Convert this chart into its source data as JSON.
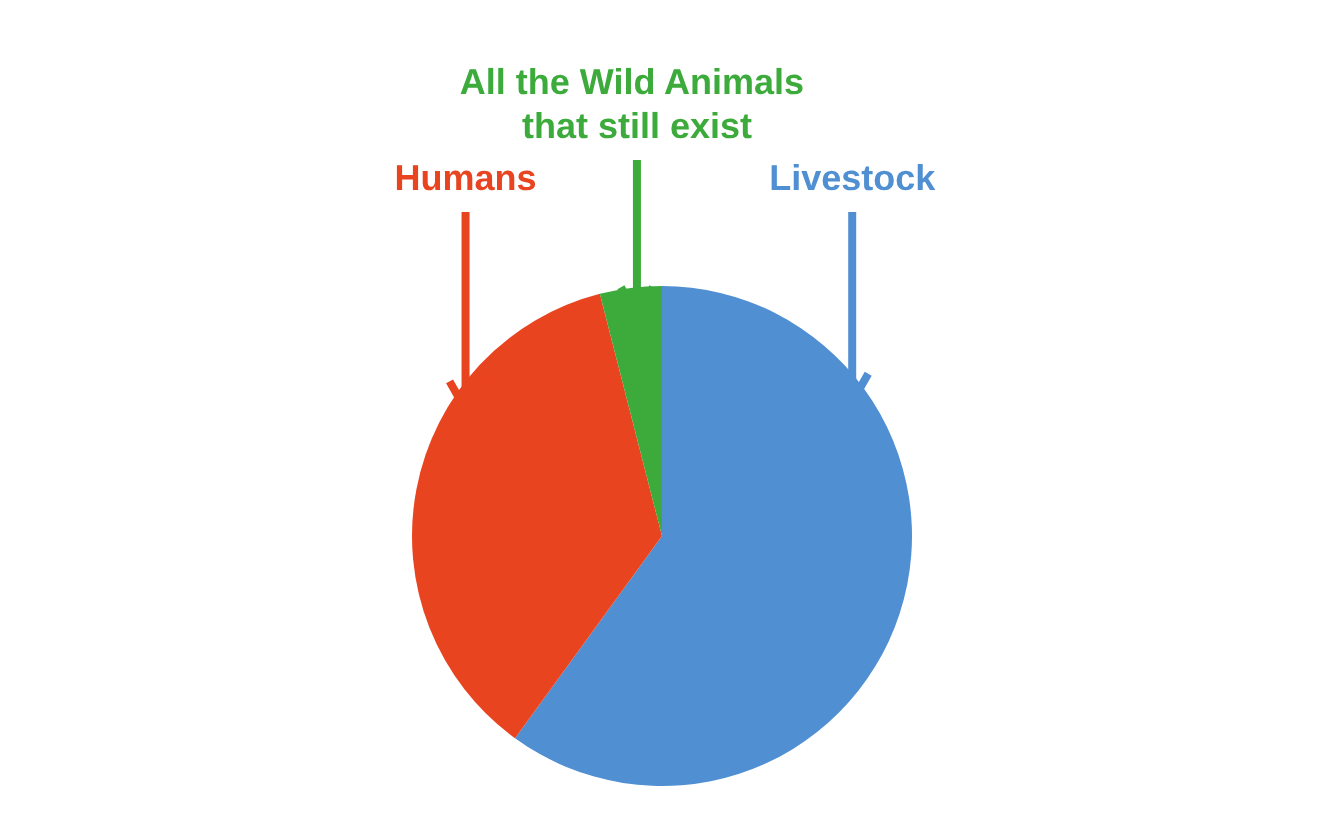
{
  "chart_data": {
    "type": "pie",
    "categories": [
      "Livestock",
      "Humans",
      "All the Wild Animals that still exist"
    ],
    "values": [
      60,
      36,
      4
    ],
    "colors": [
      "#4f8fd2",
      "#e8441f",
      "#3cab3c"
    ]
  }
}
